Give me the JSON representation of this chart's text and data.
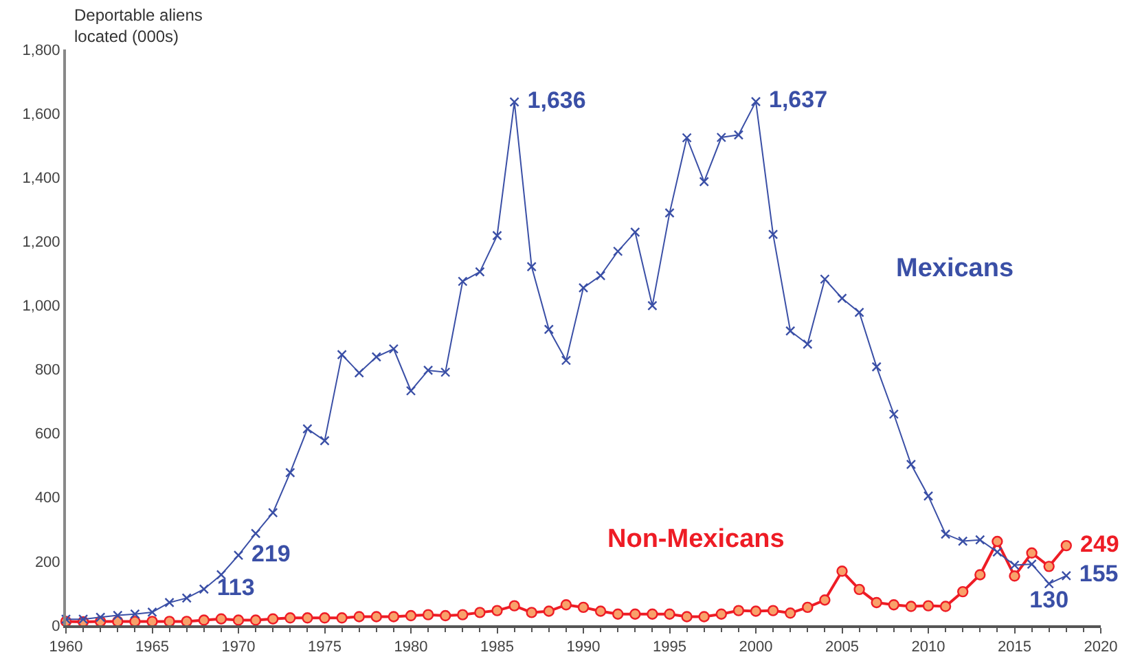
{
  "chart_data": {
    "type": "line",
    "ylabel": "Deportable aliens\nlocated (000s)",
    "x": [
      1960,
      1961,
      1962,
      1963,
      1964,
      1965,
      1966,
      1967,
      1968,
      1969,
      1970,
      1971,
      1972,
      1973,
      1974,
      1975,
      1976,
      1977,
      1978,
      1979,
      1980,
      1981,
      1982,
      1983,
      1984,
      1985,
      1986,
      1987,
      1988,
      1989,
      1990,
      1991,
      1992,
      1993,
      1994,
      1995,
      1996,
      1997,
      1998,
      1999,
      2000,
      2001,
      2002,
      2003,
      2004,
      2005,
      2006,
      2007,
      2008,
      2009,
      2010,
      2011,
      2012,
      2013,
      2014,
      2015,
      2016,
      2017,
      2018
    ],
    "xlim": [
      1960,
      2020
    ],
    "xticks": [
      1960,
      1965,
      1970,
      1975,
      1980,
      1985,
      1990,
      1995,
      2000,
      2005,
      2010,
      2015,
      2020
    ],
    "ylim": [
      0,
      1800
    ],
    "yticks": [
      0,
      {
        "value": 200,
        "label": "200"
      },
      {
        "value": 400,
        "label": "400"
      },
      {
        "value": 600,
        "label": "600"
      },
      {
        "value": 800,
        "label": "800"
      },
      {
        "value": 1000,
        "label": "1,000"
      },
      {
        "value": 1200,
        "label": "1,200"
      },
      {
        "value": 1400,
        "label": "1,400"
      },
      {
        "value": 1600,
        "label": "1,600"
      },
      {
        "value": 1800,
        "label": "1,800"
      }
    ],
    "line_style": "solid",
    "series": [
      {
        "name": "Mexicans",
        "color": "#3a4fa6",
        "marker": "cross",
        "values": [
          19,
          19,
          25,
          31,
          35,
          41,
          71,
          85,
          113,
          158,
          219,
          287,
          352,
          477,
          614,
          577,
          846,
          789,
          839,
          864,
          733,
          797,
          791,
          1075,
          1105,
          1218,
          1636,
          1121,
          925,
          828,
          1055,
          1093,
          1169,
          1229,
          999,
          1289,
          1524,
          1387,
          1525,
          1533,
          1637,
          1222,
          920,
          879,
          1082,
          1022,
          978,
          808,
          660,
          503,
          404,
          285,
          263,
          267,
          229,
          188,
          191,
          130,
          155
        ],
        "value_labels": [
          null,
          null,
          null,
          null,
          null,
          null,
          null,
          null,
          "113",
          null,
          "219",
          null,
          null,
          null,
          null,
          null,
          null,
          null,
          null,
          null,
          null,
          null,
          null,
          null,
          null,
          null,
          "1,636",
          null,
          null,
          null,
          null,
          null,
          null,
          null,
          null,
          null,
          null,
          null,
          null,
          null,
          "1,637",
          null,
          null,
          null,
          null,
          null,
          null,
          null,
          null,
          null,
          null,
          null,
          null,
          null,
          null,
          null,
          null,
          "130",
          "155"
        ]
      },
      {
        "name": "Non-Mexicans",
        "color": "#ee1c25",
        "marker": "circle",
        "values": [
          12,
          11,
          12,
          12,
          12,
          12,
          12,
          12,
          16,
          20,
          16,
          16,
          20,
          23,
          23,
          23,
          23,
          27,
          27,
          27,
          30,
          33,
          30,
          33,
          40,
          46,
          61,
          40,
          44,
          64,
          56,
          44,
          35,
          35,
          35,
          35,
          27,
          27,
          35,
          46,
          44,
          46,
          38,
          56,
          79,
          169,
          112,
          71,
          64,
          59,
          61,
          59,
          105,
          158,
          262,
          154,
          226,
          184,
          249
        ],
        "value_labels": [
          null,
          null,
          null,
          null,
          null,
          null,
          null,
          null,
          null,
          null,
          null,
          null,
          null,
          null,
          null,
          null,
          null,
          null,
          null,
          null,
          null,
          null,
          null,
          null,
          null,
          null,
          null,
          null,
          null,
          null,
          null,
          null,
          null,
          null,
          null,
          null,
          null,
          null,
          null,
          null,
          null,
          null,
          null,
          null,
          null,
          null,
          null,
          null,
          null,
          null,
          null,
          null,
          null,
          null,
          null,
          null,
          null,
          null,
          "249"
        ]
      }
    ]
  }
}
